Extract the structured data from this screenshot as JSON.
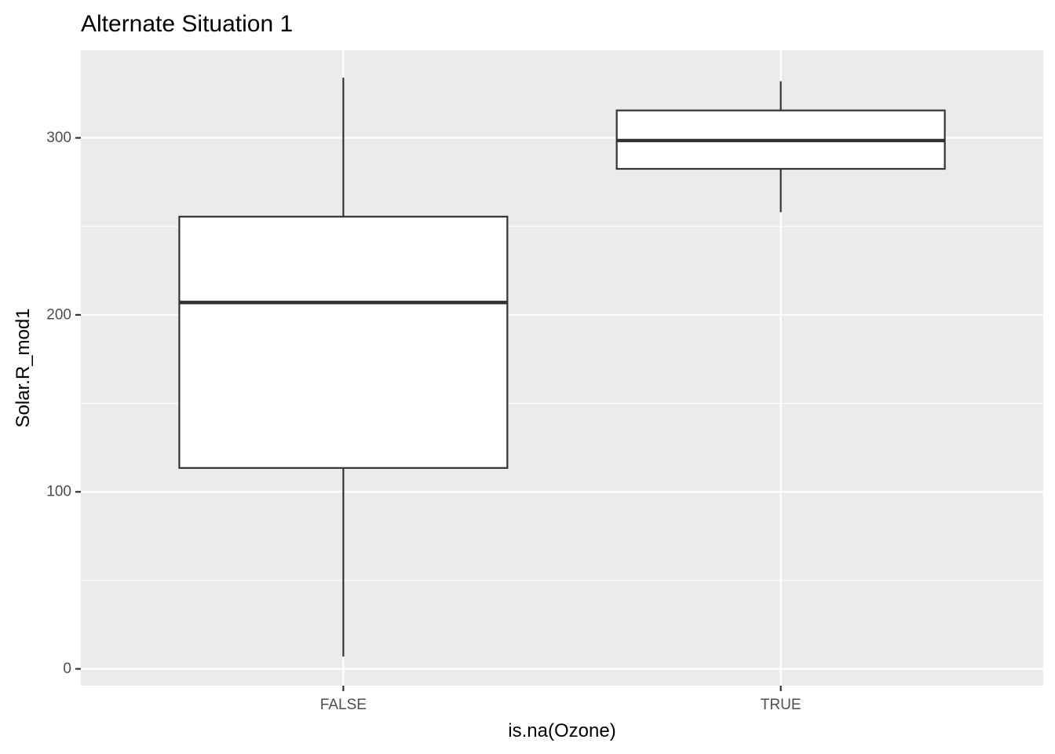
{
  "chart_data": {
    "type": "boxplot",
    "title": "Alternate Situation 1",
    "xlabel": "is.na(Ozone)",
    "ylabel": "Solar.R_mod1",
    "categories": [
      "FALSE",
      "TRUE"
    ],
    "boxes": [
      {
        "category": "FALSE",
        "lower_whisker": 7,
        "q1": 113.5,
        "median": 207,
        "q3": 255.5,
        "upper_whisker": 334
      },
      {
        "category": "TRUE",
        "lower_whisker": 258,
        "q1": 282.5,
        "median": 298.5,
        "q3": 315.5,
        "upper_whisker": 332
      }
    ],
    "y_ticks": [
      0,
      100,
      200,
      300
    ],
    "ylim": [
      -9.5,
      349.5
    ],
    "grid": true,
    "colors": {
      "panel_background": "#ebebeb",
      "grid_line": "#ffffff",
      "box_fill": "#ffffff",
      "box_stroke": "#333333",
      "tick_label": "#4d4d4d",
      "title_text": "#000000"
    }
  }
}
